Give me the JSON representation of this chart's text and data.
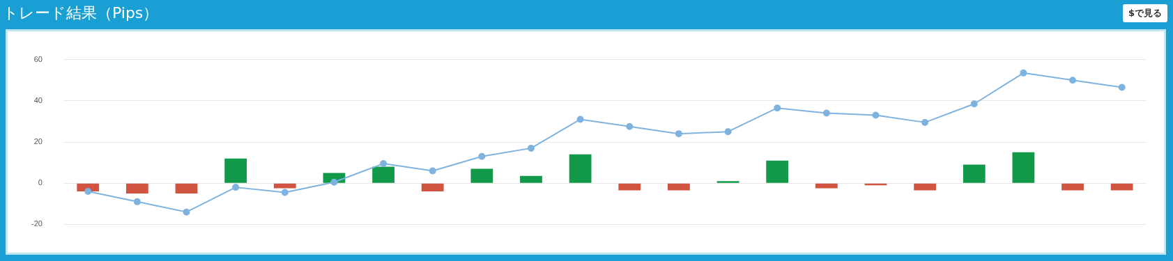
{
  "chart_data": {
    "type": "bar",
    "title": "トレード結果（Pips）",
    "annotations": [
      "$で見る"
    ],
    "categories": [
      null,
      null,
      null,
      null,
      null,
      null,
      null,
      null,
      null,
      null,
      null,
      null,
      null,
      null,
      null,
      null,
      null,
      null,
      null,
      null,
      null,
      null
    ],
    "series": [
      {
        "colors": [
          "#d05440",
          "#d05440",
          "#d05440",
          "#129a4a",
          "#d05440",
          "#129a4a",
          "#129a4a",
          "#d05440",
          "#129a4a",
          "#129a4a",
          "#129a4a",
          "#d05440",
          "#d05440",
          "#129a4a",
          "#129a4a",
          "#d05440",
          "#d05440",
          "#d05440",
          "#129a4a",
          "#129a4a",
          "#d05440",
          "#d05440"
        ],
        "values": [
          -4,
          -5,
          -5,
          12,
          -2.5,
          5,
          8,
          -4,
          7,
          3.5,
          14,
          -3.5,
          -3.5,
          1,
          11,
          -2.5,
          -1,
          -3.5,
          9,
          15,
          -3.5,
          -3.5
        ]
      },
      {
        "type": "line",
        "color": "#7eb3e0",
        "values": [
          -4,
          -9,
          -14,
          -2,
          -4.5,
          0.5,
          9.5,
          6,
          13,
          17,
          31,
          27.5,
          24,
          25,
          36.5,
          34,
          33,
          29.5,
          38.5,
          53.5,
          50,
          46.5
        ]
      }
    ],
    "ylim": [
      -20,
      60
    ],
    "yticks": [
      -20,
      0,
      20,
      40,
      60
    ],
    "grid": "y",
    "legend": false,
    "tick_labels": "y",
    "marker": "circle"
  }
}
